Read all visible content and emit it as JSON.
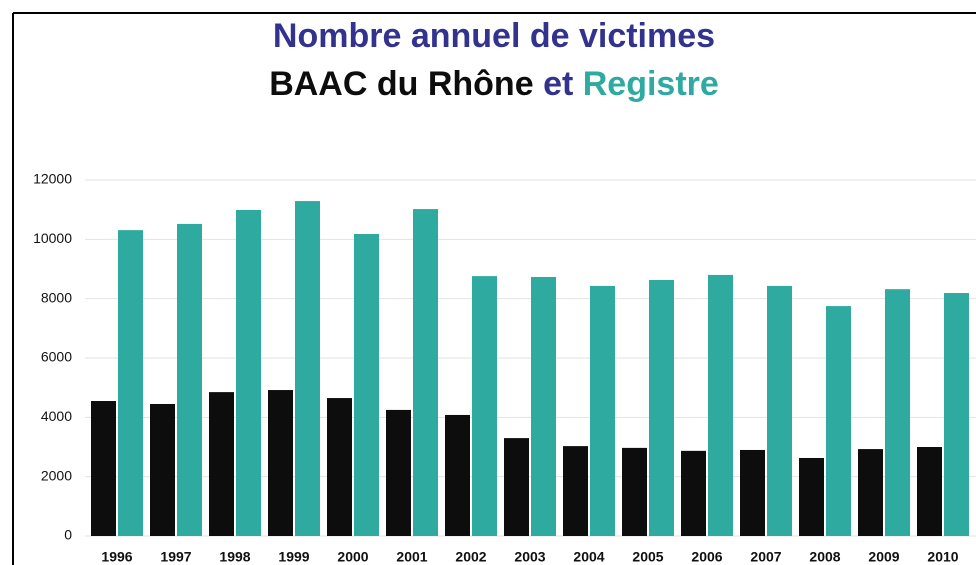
{
  "chart_data": {
    "type": "bar",
    "title": "Nombre annuel de victimes",
    "title_color": "#33338f",
    "subtitle_connector": "et",
    "categories": [
      "1996",
      "1997",
      "1998",
      "1999",
      "2000",
      "2001",
      "2002",
      "2003",
      "2004",
      "2005",
      "2006",
      "2007",
      "2008",
      "2009",
      "2010"
    ],
    "series": [
      {
        "name": "BAAC du Rhône",
        "color": "#0d0d0d",
        "values": [
          4550,
          4450,
          4850,
          4920,
          4650,
          4250,
          4080,
          3300,
          3030,
          2970,
          2870,
          2900,
          2630,
          2930,
          3000
        ]
      },
      {
        "name": "Registre",
        "color": "#2eaaa0",
        "values": [
          10310,
          10520,
          10990,
          11290,
          10180,
          11020,
          8760,
          8730,
          8430,
          8630,
          8800,
          8430,
          7750,
          8320,
          8190
        ]
      }
    ],
    "ylim": [
      0,
      12000
    ],
    "yticks": [
      0,
      2000,
      4000,
      6000,
      8000,
      10000,
      12000
    ],
    "grid": true
  }
}
